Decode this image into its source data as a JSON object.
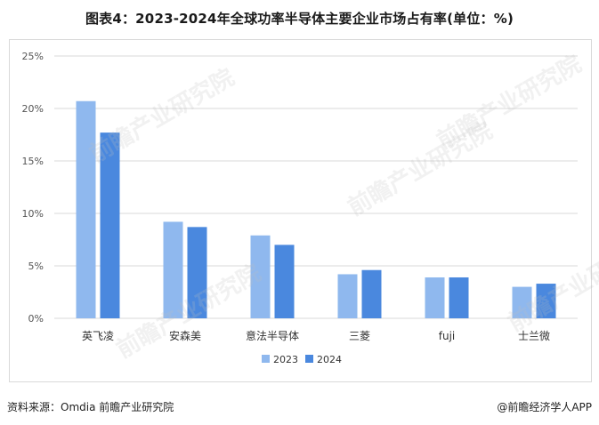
{
  "title": "图表4：2023-2024年全球功率半导体主要企业市场占有率(单位：%)",
  "source": "资料来源：Omdia 前瞻产业研究院",
  "brand": "@前瞻经济学人APP",
  "watermark": "前瞻产业研究院",
  "colors": {
    "series_2023": "#8fb8ee",
    "series_2024": "#4a88de",
    "grid": "#d9d9d9"
  },
  "chart_data": {
    "type": "bar",
    "categories": [
      "英飞凌",
      "安森美",
      "意法半导体",
      "三菱",
      "fuji",
      "士兰微"
    ],
    "series": [
      {
        "name": "2023",
        "values": [
          20.7,
          9.2,
          7.9,
          4.2,
          3.9,
          3.0
        ]
      },
      {
        "name": "2024",
        "values": [
          17.7,
          8.7,
          7.0,
          4.6,
          3.9,
          3.3
        ]
      }
    ],
    "ylim": [
      0,
      25
    ],
    "yticks": [
      0,
      5,
      10,
      15,
      20,
      25
    ],
    "ytick_labels": [
      "0%",
      "5%",
      "10%",
      "15%",
      "20%",
      "25%"
    ],
    "grid": true,
    "legend_position": "bottom-center"
  }
}
